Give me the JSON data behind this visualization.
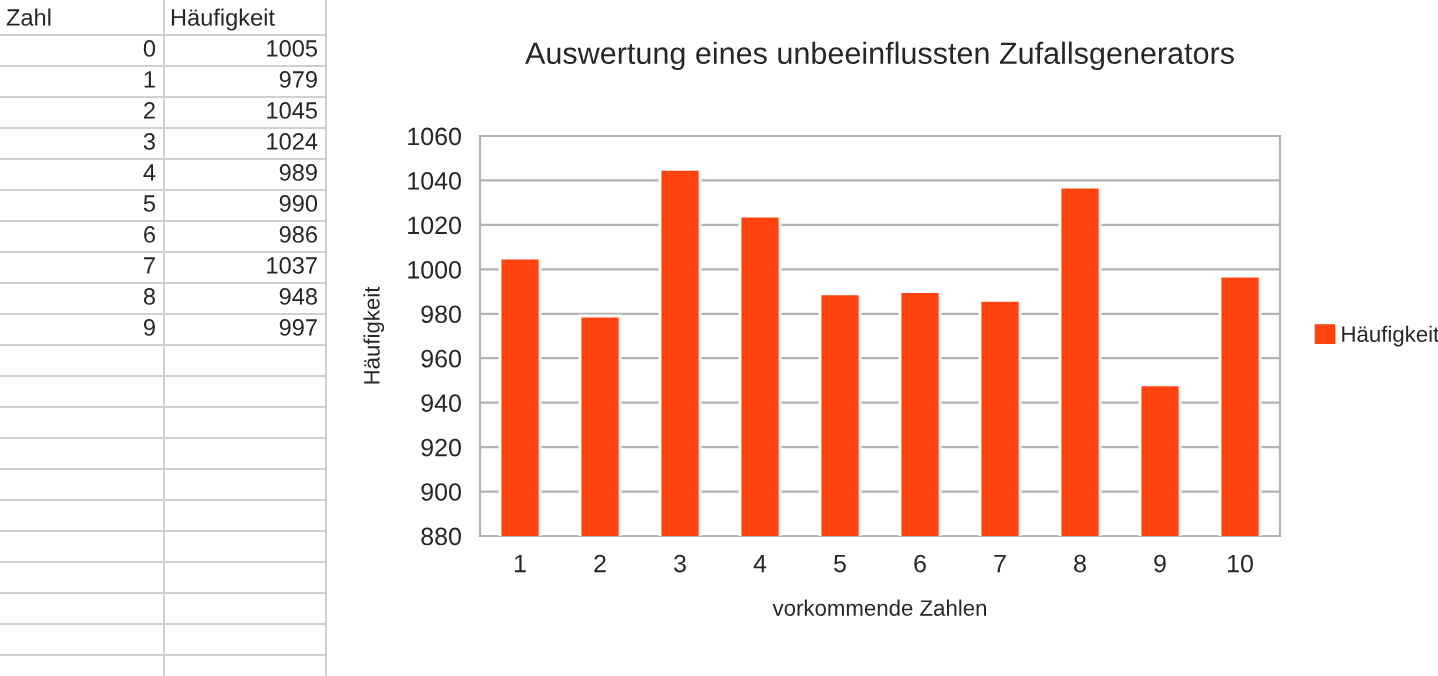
{
  "chart_data": {
    "type": "bar",
    "title": "Auswertung eines unbeeinflussten Zufallsgenerators",
    "xlabel": "vorkommende Zahlen",
    "ylabel": "Häufigkeit",
    "categories": [
      "1",
      "2",
      "3",
      "4",
      "5",
      "6",
      "7",
      "8",
      "9",
      "10"
    ],
    "series": [
      {
        "name": "Häufigkeit",
        "color": "#ff420e",
        "values": [
          1005,
          979,
          1045,
          1024,
          989,
          990,
          986,
          1037,
          948,
          997
        ]
      }
    ],
    "ylim": [
      880,
      1060
    ],
    "yticks": [
      880,
      900,
      920,
      940,
      960,
      980,
      1000,
      1020,
      1040,
      1060
    ],
    "grid": "y",
    "legend": "right",
    "annotations": [
      "Zahl",
      "Häufigkeit",
      "0",
      "1005",
      "1",
      "979",
      "2",
      "1045",
      "3",
      "1024",
      "4",
      "989",
      "5",
      "990",
      "6",
      "986",
      "7",
      "1037",
      "8",
      "948",
      "9",
      "997"
    ]
  }
}
